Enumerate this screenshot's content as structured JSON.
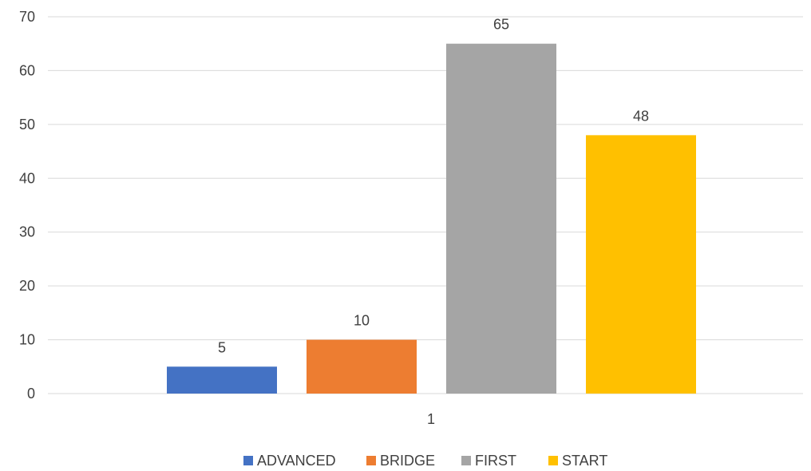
{
  "chart_data": {
    "type": "bar",
    "categories": [
      "1"
    ],
    "series": [
      {
        "name": "ADVANCED",
        "values": [
          5
        ],
        "color": "#4472C4"
      },
      {
        "name": "BRIDGE",
        "values": [
          10
        ],
        "color": "#ED7D31"
      },
      {
        "name": "FIRST",
        "values": [
          65
        ],
        "color": "#A5A5A5"
      },
      {
        "name": "START",
        "values": [
          48
        ],
        "color": "#FFC000"
      }
    ],
    "ylim": [
      0,
      70
    ],
    "yticks": [
      "0",
      "10",
      "20",
      "30",
      "40",
      "50",
      "60",
      "70"
    ],
    "grid": true,
    "legend_position": "bottom",
    "data_labels": [
      "5",
      "10",
      "65",
      "48"
    ],
    "gridline_color": "#D9D9D9",
    "text_color": "#404040"
  }
}
